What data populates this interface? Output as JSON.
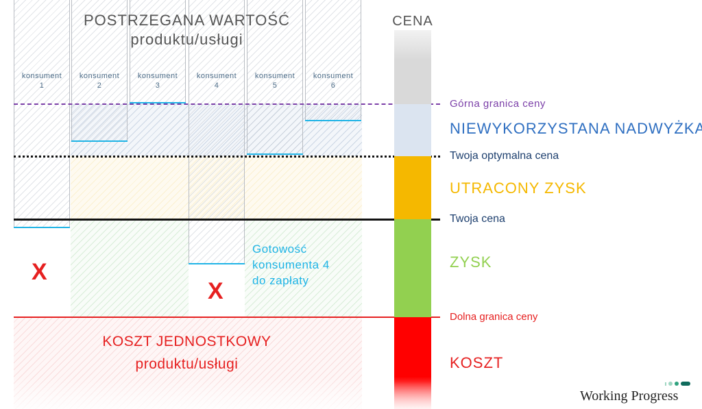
{
  "title": {
    "line1": "POSTRZEGANA WARTOŚĆ",
    "line2": "produktu/usługi"
  },
  "price_bar_title": "CENA",
  "consumers": [
    {
      "label": "konsument",
      "number": "1",
      "rejected": true
    },
    {
      "label": "konsument",
      "number": "2",
      "rejected": false
    },
    {
      "label": "konsument",
      "number": "3",
      "rejected": false
    },
    {
      "label": "konsument",
      "number": "4",
      "rejected": true
    },
    {
      "label": "konsument",
      "number": "5",
      "rejected": false
    },
    {
      "label": "konsument",
      "number": "6",
      "rejected": false
    }
  ],
  "reject_mark": "X",
  "annotation": {
    "line1": "Gotowość",
    "line2": "konsumenta 4",
    "line3": "do zapłaty"
  },
  "cost_label": {
    "line1": "KOSZT JEDNOSTKOWY",
    "line2": "produktu/usługi"
  },
  "levels": {
    "upper_bound": "Górna granica ceny",
    "optimal_price": "Twoja optymalna cena",
    "your_price": "Twoja cena",
    "lower_bound": "Dolna granica ceny"
  },
  "zones": {
    "unused_surplus": "NIEWYKORZYSTANA NADWYŻKA",
    "lost_profit": "UTRACONY ZYSK",
    "profit": "ZYSK",
    "cost": "KOSZT"
  },
  "brand": "Working Progress",
  "colors": {
    "purple": "#7b3fa8",
    "navy": "#1d3f6e",
    "blue_heading": "#2f6fc1",
    "orange": "#f5b800",
    "green": "#92d050",
    "red": "#ff0000",
    "cyan": "#1fb4e6",
    "gray_bar": "#d9d9d9",
    "light_blue_bar": "#dbe4f0"
  }
}
